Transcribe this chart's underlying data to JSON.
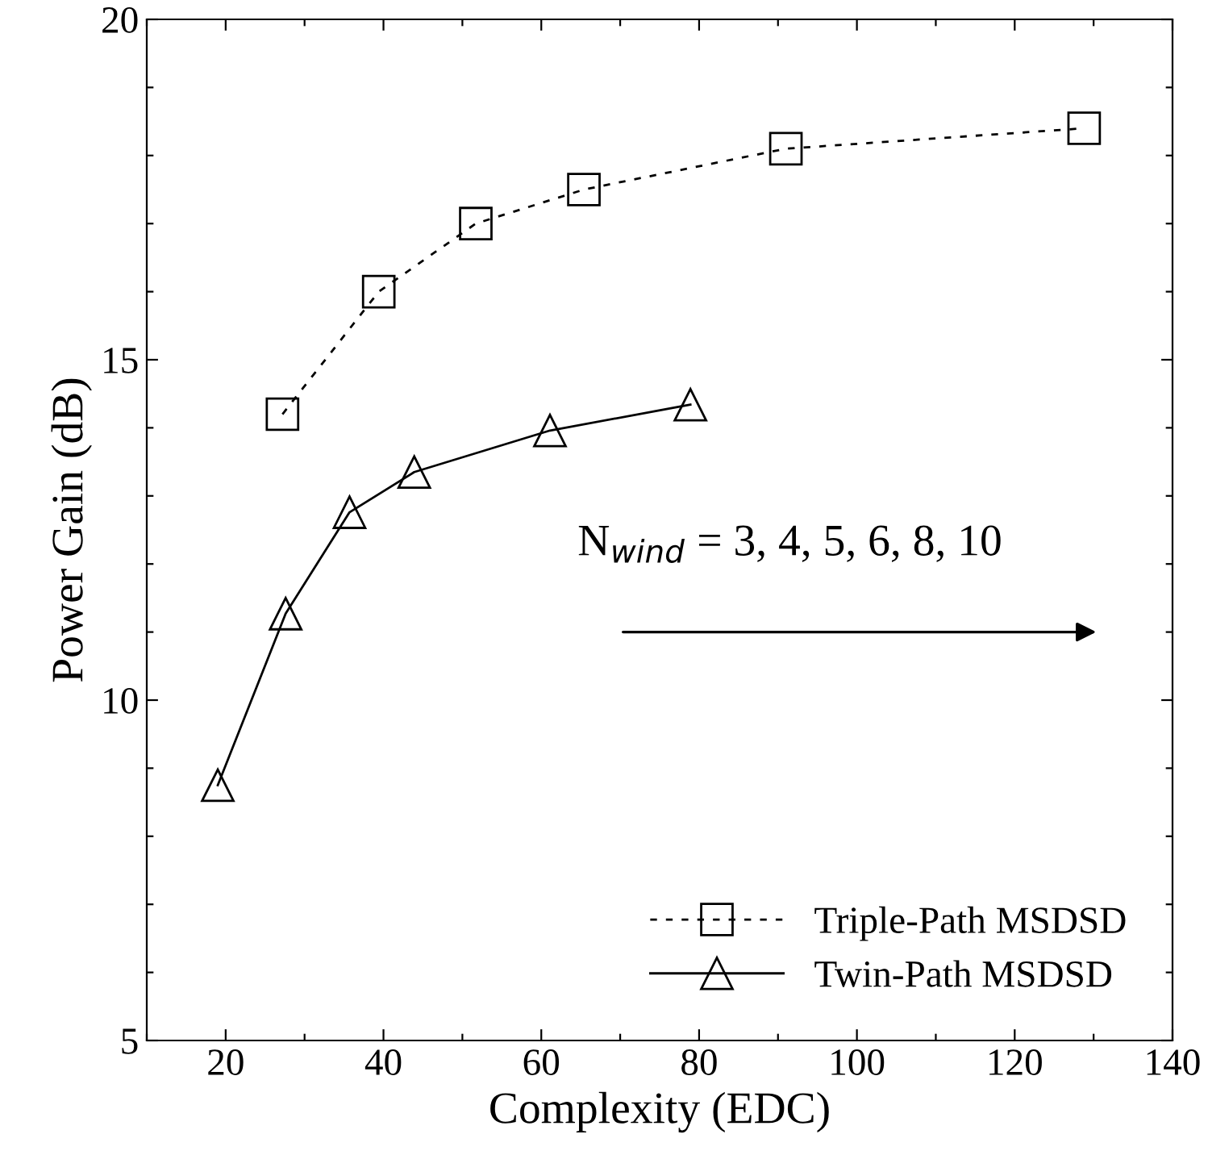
{
  "chart_data": {
    "type": "line",
    "xlabel": "Complexity (EDC)",
    "ylabel": "Power Gain (dB)",
    "xlim": [
      10,
      140
    ],
    "ylim": [
      5,
      20
    ],
    "xticks": [
      {
        "value": 10,
        "label": null
      },
      20,
      {
        "value": 30,
        "label": null
      },
      40,
      {
        "value": 50,
        "label": null
      },
      60,
      {
        "value": 70,
        "label": null
      },
      80,
      {
        "value": 90,
        "label": null
      },
      100,
      {
        "value": 110,
        "label": null
      },
      120,
      {
        "value": 130,
        "label": null
      },
      140
    ],
    "yticks": [
      5,
      {
        "value": 6,
        "label": null
      },
      {
        "value": 7,
        "label": null
      },
      {
        "value": 8,
        "label": null
      },
      {
        "value": 9,
        "label": null
      },
      10,
      {
        "value": 11,
        "label": null
      },
      {
        "value": 12,
        "label": null
      },
      {
        "value": 13,
        "label": null
      },
      {
        "value": 14,
        "label": null
      },
      15,
      {
        "value": 16,
        "label": null
      },
      {
        "value": 17,
        "label": null
      },
      {
        "value": 18,
        "label": null
      },
      {
        "value": 19,
        "label": null
      },
      20
    ],
    "grid": false,
    "legend": "bottom right",
    "annotations": [
      "N$_{wind}$ = 3, 4, 5, 6, 8, 10"
    ],
    "series": [
      {
        "name": "Triple-Path MSDSD",
        "color": "#000000",
        "marker": "square",
        "line_style": "dashed",
        "x": [
          27.2,
          39.4,
          51.7,
          65.4,
          91,
          128.8
        ],
        "values": [
          14.2,
          16.0,
          17.0,
          17.5,
          18.1,
          18.4
        ]
      },
      {
        "name": "Twin-Path MSDSD",
        "color": "#000000",
        "marker": "triangle",
        "line_style": "solid",
        "x": [
          19,
          27.6,
          35.7,
          43.9,
          61.1,
          78.9
        ],
        "values": [
          8.75,
          11.27,
          12.76,
          13.35,
          13.96,
          14.34
        ]
      }
    ]
  }
}
